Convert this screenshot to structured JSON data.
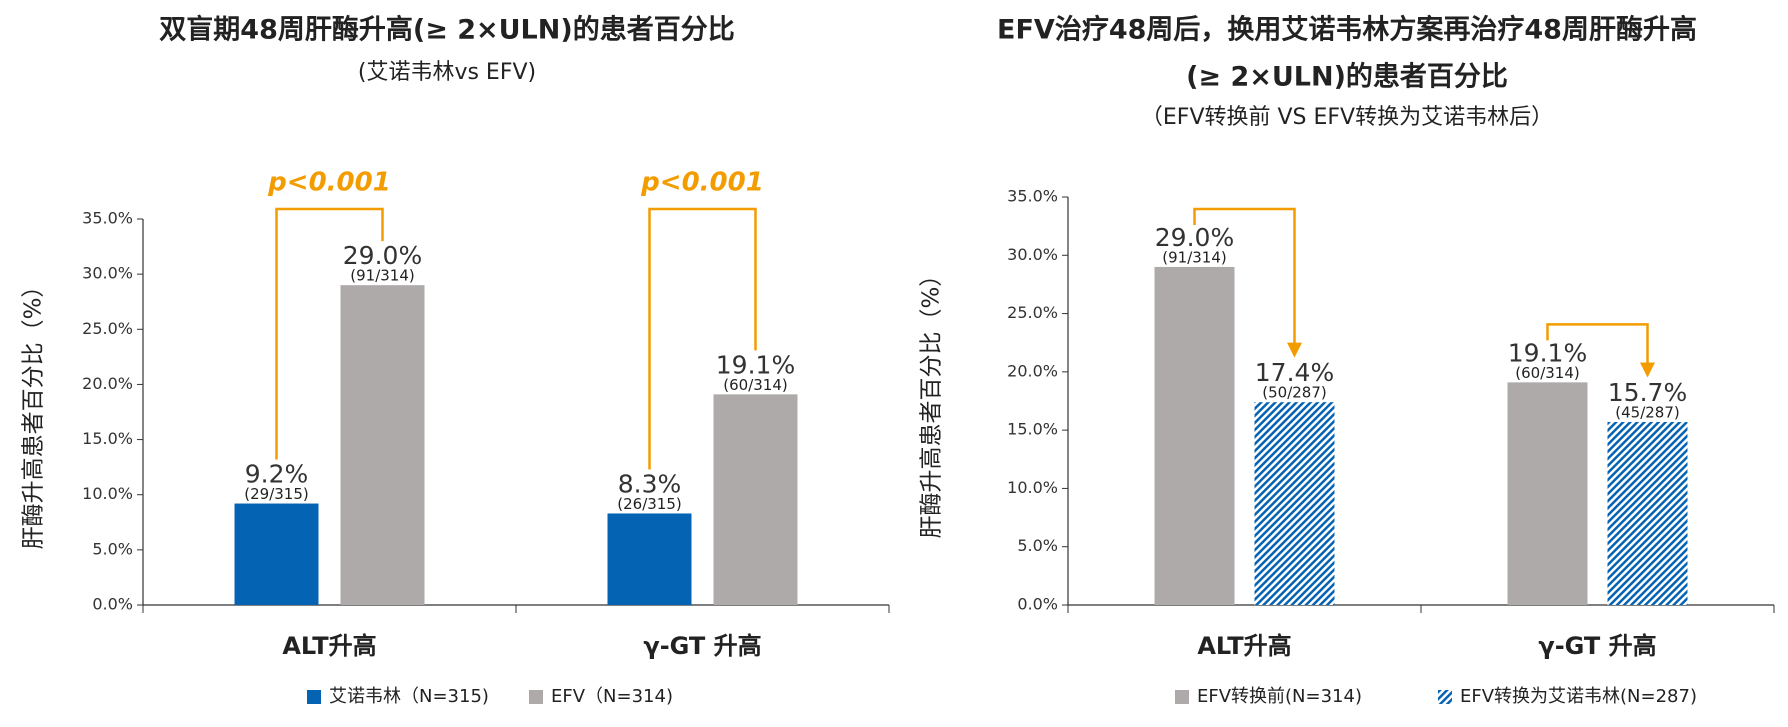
{
  "chart_data": [
    {
      "type": "bar",
      "title": [
        "双盲期48周肝酶升高(≥ 2×ULN)的患者百分比"
      ],
      "subtitle": "(艾诺韦林vs EFV)",
      "y_label": "肝酶升高患者百分比（%）",
      "categories": [
        "ALT升高",
        "γ-GT 升高"
      ],
      "series": [
        {
          "name": "艾诺韦林（N=315)",
          "color": "#0563b3",
          "fill_style": "solid",
          "values": [
            9.2,
            8.3
          ],
          "value_labels": [
            "9.2%",
            "8.3%"
          ],
          "counts": [
            "(29/315)",
            "(26/315)"
          ]
        },
        {
          "name": "EFV（N=314)",
          "color": "#aeaaaa",
          "fill_style": "solid",
          "values": [
            29.0,
            19.1
          ],
          "value_labels": [
            "29.0%",
            "19.1%"
          ],
          "counts": [
            "(91/314)",
            "(60/314)"
          ]
        }
      ],
      "annotations": [
        "p<0.001",
        "p<0.001"
      ],
      "connector": "bracket",
      "ylim": [
        0,
        35
      ],
      "yticks": [
        {
          "value": 0,
          "label": "0.0%"
        },
        {
          "value": 5,
          "label": "5.0%"
        },
        {
          "value": 10,
          "label": "10.0%"
        },
        {
          "value": 15,
          "label": "15.0%"
        },
        {
          "value": 20,
          "label": "20.0%"
        },
        {
          "value": 25,
          "label": "25.0%"
        },
        {
          "value": 30,
          "label": "30.0%"
        },
        {
          "value": 35,
          "label": "35.0%"
        }
      ],
      "grid": false,
      "legend": "bottom"
    },
    {
      "type": "bar",
      "title": [
        "EFV治疗48周后，换用艾诺韦林方案再治疗48周肝酶升高",
        "(≥ 2×ULN)的患者百分比"
      ],
      "subtitle": "（EFV转换前 VS EFV转换为艾诺韦林后）",
      "y_label": "肝酶升高患者百分比（%）",
      "categories": [
        "ALT升高",
        "γ-GT 升高"
      ],
      "series": [
        {
          "name": "EFV转换前(N=314)",
          "color": "#aeaaaa",
          "fill_style": "solid",
          "values": [
            29.0,
            19.1
          ],
          "value_labels": [
            "29.0%",
            "19.1%"
          ],
          "counts": [
            "(91/314)",
            "(60/314)"
          ]
        },
        {
          "name": "EFV转换为艾诺韦林(N=287)",
          "color": "#0563b3",
          "fill_style": "hatch",
          "values": [
            17.4,
            15.7
          ],
          "value_labels": [
            "17.4%",
            "15.7%"
          ],
          "counts": [
            "(50/287)",
            "(45/287)"
          ]
        }
      ],
      "connector": "arrow",
      "ylim": [
        0,
        35
      ],
      "yticks": [
        {
          "value": 0,
          "label": "0.0%"
        },
        {
          "value": 5,
          "label": "5.0%"
        },
        {
          "value": 10,
          "label": "10.0%"
        },
        {
          "value": 15,
          "label": "15.0%"
        },
        {
          "value": 20,
          "label": "20.0%"
        },
        {
          "value": 25,
          "label": "25.0%"
        },
        {
          "value": 30,
          "label": "30.0%"
        },
        {
          "value": 35,
          "label": "35.0%"
        }
      ],
      "grid": false,
      "legend": "bottom"
    }
  ]
}
